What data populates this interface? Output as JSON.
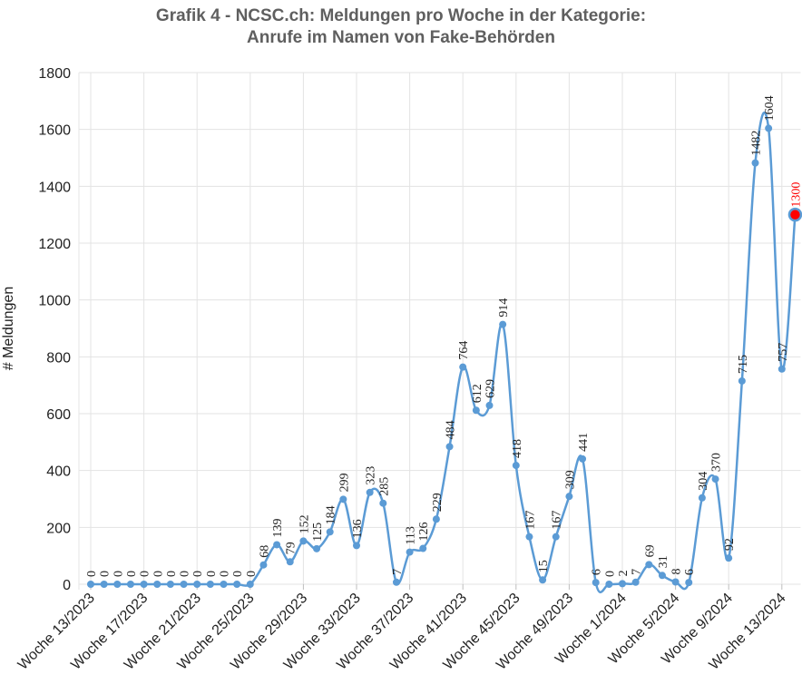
{
  "chart_data": {
    "type": "line",
    "title_line1": "Grafik 4 - NCSC.ch: Meldungen pro Woche in der Kategorie:",
    "title_line2": "Anrufe im Namen von Fake-Behörden",
    "ylabel": "# Meldungen",
    "xlabel": "",
    "ylim": [
      0,
      1800
    ],
    "yticks": [
      0,
      200,
      400,
      600,
      800,
      1000,
      1200,
      1400,
      1600,
      1800
    ],
    "grid": true,
    "legend": "none",
    "line_color": "#5b9bd5",
    "highlight_color": "#ff0000",
    "x": [
      "Woche 13/2023",
      "Woche 14/2023",
      "Woche 15/2023",
      "Woche 16/2023",
      "Woche 17/2023",
      "Woche 18/2023",
      "Woche 19/2023",
      "Woche 20/2023",
      "Woche 21/2023",
      "Woche 22/2023",
      "Woche 23/2023",
      "Woche 24/2023",
      "Woche 25/2023",
      "Woche 26/2023",
      "Woche 27/2023",
      "Woche 28/2023",
      "Woche 29/2023",
      "Woche 30/2023",
      "Woche 31/2023",
      "Woche 32/2023",
      "Woche 33/2023",
      "Woche 34/2023",
      "Woche 35/2023",
      "Woche 36/2023",
      "Woche 37/2023",
      "Woche 38/2023",
      "Woche 39/2023",
      "Woche 40/2023",
      "Woche 41/2023",
      "Woche 42/2023",
      "Woche 43/2023",
      "Woche 44/2023",
      "Woche 45/2023",
      "Woche 46/2023",
      "Woche 47/2023",
      "Woche 48/2023",
      "Woche 49/2023",
      "Woche 50/2023",
      "Woche 51/2023",
      "Woche 52/2023",
      "Woche 1/2024",
      "Woche 2/2024",
      "Woche 3/2024",
      "Woche 4/2024",
      "Woche 5/2024",
      "Woche 6/2024",
      "Woche 7/2024",
      "Woche 8/2024",
      "Woche 9/2024",
      "Woche 10/2024",
      "Woche 11/2024",
      "Woche 12/2024",
      "Woche 13/2024",
      "Woche 14/2024"
    ],
    "x_tick_labels": [
      "Woche 13/2023",
      "Woche 17/2023",
      "Woche 21/2023",
      "Woche 25/2023",
      "Woche 29/2023",
      "Woche 33/2023",
      "Woche 37/2023",
      "Woche 41/2023",
      "Woche 45/2023",
      "Woche 49/2023",
      "Woche 1/2024",
      "Woche 5/2024",
      "Woche 9/2024",
      "Woche 13/2024"
    ],
    "values": [
      0,
      0,
      0,
      0,
      0,
      0,
      0,
      0,
      0,
      0,
      0,
      0,
      0,
      68,
      139,
      79,
      152,
      125,
      184,
      299,
      136,
      323,
      285,
      7,
      113,
      126,
      229,
      484,
      764,
      612,
      629,
      914,
      418,
      167,
      15,
      167,
      309,
      441,
      6,
      0,
      2,
      7,
      69,
      31,
      8,
      6,
      304,
      370,
      92,
      715,
      1482,
      1604,
      757,
      1300
    ],
    "highlight_index": 53
  }
}
